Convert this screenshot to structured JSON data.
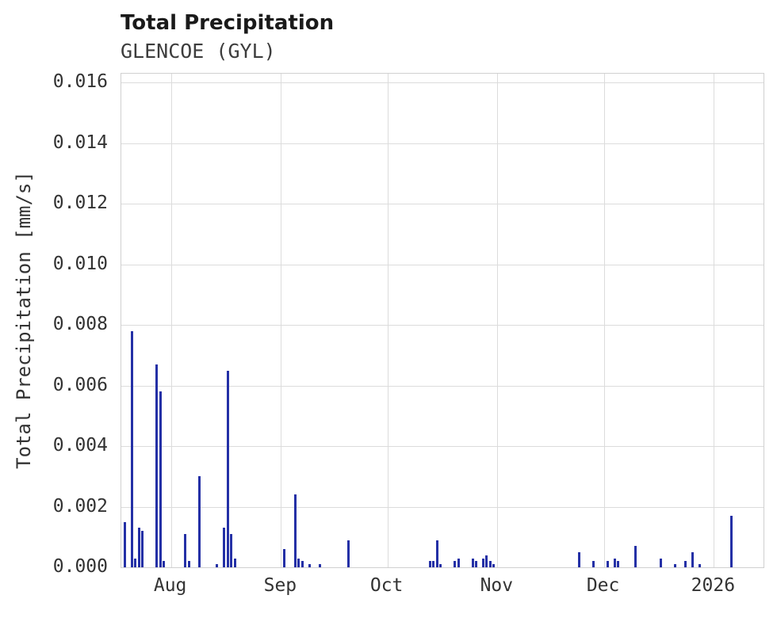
{
  "header": {
    "title": "Total Precipitation",
    "subtitle": "GLENCOE (GYL)"
  },
  "chart_data": {
    "type": "bar",
    "title": "Total Precipitation",
    "subtitle": "GLENCOE (GYL)",
    "xlabel": "",
    "ylabel": "Total Precipitation [mm/s]",
    "grid": true,
    "legend": false,
    "bar_color": "#2430a6",
    "grid_color": "#dcdcdc",
    "ylim": [
      0,
      0.0163
    ],
    "x_range": [
      "2025-07-18",
      "2026-01-15"
    ],
    "y_ticks": [
      0.0,
      0.002,
      0.004,
      0.006,
      0.008,
      0.01,
      0.012,
      0.014,
      0.016
    ],
    "x_ticks": [
      {
        "date": "2025-08-01",
        "label": "Aug"
      },
      {
        "date": "2025-09-01",
        "label": "Sep"
      },
      {
        "date": "2025-10-01",
        "label": "Oct"
      },
      {
        "date": "2025-11-01",
        "label": "Nov"
      },
      {
        "date": "2025-12-01",
        "label": "Dec"
      },
      {
        "date": "2026-01-01",
        "label": "2026"
      }
    ],
    "points": [
      {
        "date": "2025-07-19",
        "value": 0.0015
      },
      {
        "date": "2025-07-21",
        "value": 0.0078
      },
      {
        "date": "2025-07-22",
        "value": 0.0003
      },
      {
        "date": "2025-07-23",
        "value": 0.0013
      },
      {
        "date": "2025-07-24",
        "value": 0.0012
      },
      {
        "date": "2025-07-28",
        "value": 0.0067
      },
      {
        "date": "2025-07-29",
        "value": 0.0058
      },
      {
        "date": "2025-07-30",
        "value": 0.0002
      },
      {
        "date": "2025-08-05",
        "value": 0.0011
      },
      {
        "date": "2025-08-06",
        "value": 0.0002
      },
      {
        "date": "2025-08-09",
        "value": 0.003
      },
      {
        "date": "2025-08-14",
        "value": 0.0001
      },
      {
        "date": "2025-08-16",
        "value": 0.0013
      },
      {
        "date": "2025-08-17",
        "value": 0.0065
      },
      {
        "date": "2025-08-18",
        "value": 0.0011
      },
      {
        "date": "2025-08-19",
        "value": 0.0003
      },
      {
        "date": "2025-09-02",
        "value": 0.0006
      },
      {
        "date": "2025-09-05",
        "value": 0.0024
      },
      {
        "date": "2025-09-06",
        "value": 0.0003
      },
      {
        "date": "2025-09-07",
        "value": 0.0002
      },
      {
        "date": "2025-09-09",
        "value": 0.0001
      },
      {
        "date": "2025-09-12",
        "value": 0.0001
      },
      {
        "date": "2025-09-20",
        "value": 0.0009
      },
      {
        "date": "2025-10-13",
        "value": 0.0002
      },
      {
        "date": "2025-10-14",
        "value": 0.0002
      },
      {
        "date": "2025-10-15",
        "value": 0.0009
      },
      {
        "date": "2025-10-16",
        "value": 0.0001
      },
      {
        "date": "2025-10-20",
        "value": 0.0002
      },
      {
        "date": "2025-10-21",
        "value": 0.0003
      },
      {
        "date": "2025-10-25",
        "value": 0.0003
      },
      {
        "date": "2025-10-26",
        "value": 0.0002
      },
      {
        "date": "2025-10-28",
        "value": 0.0003
      },
      {
        "date": "2025-10-29",
        "value": 0.0004
      },
      {
        "date": "2025-10-30",
        "value": 0.0002
      },
      {
        "date": "2025-10-31",
        "value": 0.0001
      },
      {
        "date": "2025-11-24",
        "value": 0.0005
      },
      {
        "date": "2025-11-28",
        "value": 0.0002
      },
      {
        "date": "2025-12-02",
        "value": 0.0002
      },
      {
        "date": "2025-12-04",
        "value": 0.0003
      },
      {
        "date": "2025-12-05",
        "value": 0.0002
      },
      {
        "date": "2025-12-10",
        "value": 0.0007
      },
      {
        "date": "2025-12-17",
        "value": 0.0003
      },
      {
        "date": "2025-12-21",
        "value": 0.0001
      },
      {
        "date": "2025-12-24",
        "value": 0.0002
      },
      {
        "date": "2025-12-26",
        "value": 0.0005
      },
      {
        "date": "2025-12-28",
        "value": 0.0001
      },
      {
        "date": "2026-01-06",
        "value": 0.0017
      }
    ]
  }
}
